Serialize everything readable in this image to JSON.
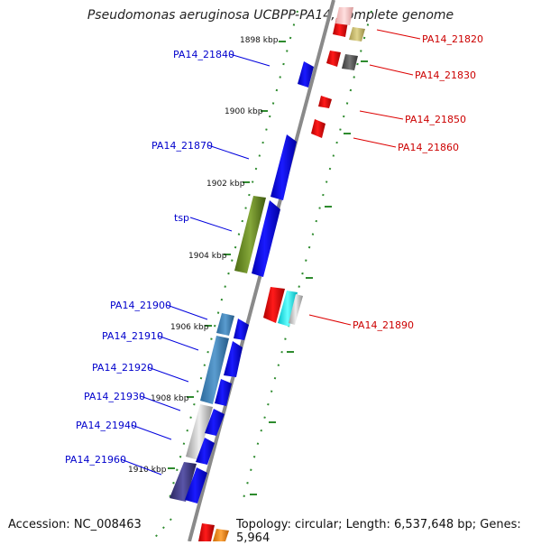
{
  "title": "Pseudomonas aeruginosa UCBPP-PA14, complete genome",
  "footer": {
    "accession": "Accession: NC_008463",
    "summary": "Topology: circular; Length: 6,537,648 bp; Genes: 5,964"
  },
  "kbp_ticks": [
    "1898 kbp",
    "1900 kbp",
    "1902 kbp",
    "1904 kbp",
    "1906 kbp",
    "1908 kbp",
    "1910 kbp"
  ],
  "genes_left": [
    {
      "label": "PA14_21840",
      "color": "#0000dd"
    },
    {
      "label": "PA14_21870",
      "color": "#0000dd"
    },
    {
      "label": "tsp",
      "color": "#0000dd"
    },
    {
      "label": "PA14_21900",
      "color": "#0000dd"
    },
    {
      "label": "PA14_21910",
      "color": "#0000dd"
    },
    {
      "label": "PA14_21920",
      "color": "#0000dd"
    },
    {
      "label": "PA14_21930",
      "color": "#0000dd"
    },
    {
      "label": "PA14_21940",
      "color": "#0000dd"
    },
    {
      "label": "PA14_21960",
      "color": "#0000dd"
    }
  ],
  "genes_right": [
    {
      "label": "PA14_21820",
      "color": "#cc0000"
    },
    {
      "label": "PA14_21830",
      "color": "#cc0000"
    },
    {
      "label": "PA14_21850",
      "color": "#cc0000"
    },
    {
      "label": "PA14_21860",
      "color": "#cc0000"
    },
    {
      "label": "PA14_21890",
      "color": "#cc0000"
    }
  ],
  "colors": {
    "backbone": "#8a8a8a",
    "forward_gene": "#0000ee",
    "reverse_gene": "#ee0000",
    "tick": "#2e8b2e",
    "label_left": "#0000cc",
    "label_right": "#cc0000"
  }
}
